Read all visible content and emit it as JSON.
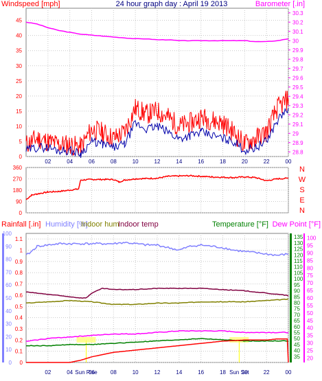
{
  "chart_data": [
    {
      "type": "line",
      "title": "24 hour graph day : April 19 2013",
      "left_axis_label": "Windspeed [mph]",
      "right_axis_label": "Barometer [.in]",
      "x_ticks": [
        "02",
        "04",
        "06",
        "08",
        "10",
        "12",
        "14",
        "16",
        "18",
        "20",
        "22",
        "00"
      ],
      "y_left_ticks": [
        "0",
        "5",
        "10",
        "15",
        "20",
        "25",
        "30",
        "35",
        "40",
        "45"
      ],
      "y_left_range": [
        0,
        49
      ],
      "y_right_ticks": [
        "28.8",
        "28.9",
        "29",
        "29.1",
        "29.2",
        "29.3",
        "29.4",
        "29.5",
        "29.6",
        "29.7",
        "29.8",
        "29.9",
        "30",
        "30.1",
        "30.2",
        "30.3"
      ],
      "y_right_range": [
        28.75,
        30.35
      ],
      "x_range_hours": [
        0,
        24
      ],
      "grid": true,
      "series": [
        {
          "color": "#ff00ff",
          "axis": "right",
          "x": [
            0,
            1,
            2,
            3,
            4,
            5,
            6,
            7,
            8,
            9,
            10,
            11,
            12,
            13,
            14,
            15,
            16,
            17,
            18,
            19,
            20,
            21,
            22,
            23,
            24
          ],
          "values": [
            30.2,
            30.18,
            30.14,
            30.11,
            30.09,
            30.07,
            30.06,
            30.05,
            30.04,
            30.03,
            30.02,
            30.02,
            30.01,
            30.01,
            30.0,
            30.0,
            30.0,
            30.0,
            30.0,
            30.0,
            30.0,
            29.99,
            29.99,
            30.0,
            30.02
          ]
        },
        {
          "color": "#ff0000",
          "axis": "left",
          "x": [
            0,
            1,
            2,
            3,
            4,
            5,
            6,
            7,
            8,
            9,
            10,
            11,
            12,
            13,
            14,
            15,
            16,
            17,
            18,
            19,
            20,
            21,
            22,
            23,
            24
          ],
          "values": [
            4,
            6,
            5,
            4,
            4,
            3,
            9,
            8,
            6,
            8,
            16,
            14,
            15,
            13,
            10,
            11,
            13,
            12,
            11,
            8,
            4,
            6,
            8,
            16,
            19
          ]
        },
        {
          "color": "#0000aa",
          "axis": "left",
          "x": [
            0,
            1,
            2,
            3,
            4,
            5,
            6,
            7,
            8,
            9,
            10,
            11,
            12,
            13,
            14,
            15,
            16,
            17,
            18,
            19,
            20,
            21,
            22,
            23,
            24
          ],
          "values": [
            2,
            3,
            3,
            2,
            2,
            1,
            5,
            4,
            3,
            4,
            11,
            9,
            10,
            8,
            6,
            7,
            8,
            7,
            6,
            5,
            2,
            3,
            5,
            12,
            16
          ]
        }
      ]
    },
    {
      "type": "line",
      "y_ticks": [
        "0",
        "90",
        "180",
        "270",
        "360"
      ],
      "y_range": [
        0,
        360
      ],
      "direction_labels": [
        "N",
        "W",
        "S",
        "E",
        "N"
      ],
      "x_range_hours": [
        0,
        24
      ],
      "series": [
        {
          "color": "#ff0000",
          "x": [
            0,
            0.5,
            1,
            2,
            3,
            4,
            4.8,
            5,
            6,
            8,
            8.5,
            9,
            10,
            12,
            13,
            15,
            17,
            19,
            20,
            21,
            22,
            23,
            24
          ],
          "values": [
            105,
            140,
            150,
            165,
            170,
            180,
            190,
            260,
            265,
            265,
            245,
            260,
            270,
            275,
            290,
            295,
            285,
            280,
            285,
            280,
            255,
            270,
            275
          ]
        }
      ]
    },
    {
      "type": "line",
      "labels": {
        "rainfall": "Rainfall [.in]",
        "humidity": "Humidity [%]",
        "indoor_hum": "Indoor hum",
        "indoor_temp": "Indoor temp",
        "temperature": "Temperature [°F]",
        "dew_point": "Dew Point [°F]"
      },
      "annotations": [
        "Sun Rise",
        "Sun Set"
      ],
      "x_range_hours": [
        0,
        24
      ],
      "rain_ticks": [
        "0",
        "0.1",
        "0.2",
        "0.3",
        "0.4",
        "0.5",
        "0.6",
        "0.7",
        "0.8",
        "0.9",
        "1",
        "1.1"
      ],
      "rain_range": [
        0,
        1.15
      ],
      "humidity_ticks": [
        "0",
        "10",
        "20",
        "30",
        "40",
        "50",
        "60",
        "70",
        "80",
        "90",
        "100"
      ],
      "humidity_range": [
        0,
        100
      ],
      "temp_ticks": [
        "35",
        "40",
        "45",
        "50",
        "55",
        "60",
        "65",
        "70",
        "75",
        "80",
        "85",
        "90",
        "95",
        "100",
        "105",
        "110",
        "115",
        "120",
        "125",
        "130",
        "135"
      ],
      "temp_range": [
        30,
        138
      ],
      "dew_ticks": [
        "20",
        "25",
        "30",
        "35",
        "40",
        "45",
        "50",
        "55",
        "60",
        "65",
        "70",
        "75",
        "80",
        "85",
        "90",
        "95",
        "100"
      ],
      "dew_range": [
        17,
        103
      ],
      "series": [
        {
          "name": "Humidity [%]",
          "color": "#8080ff",
          "axis": "humidity",
          "x": [
            0,
            0.5,
            1,
            2,
            3,
            4,
            5,
            6,
            7,
            8,
            9,
            10,
            11,
            12,
            13,
            14,
            15,
            16,
            17,
            18,
            19,
            20,
            21,
            22,
            23,
            24
          ],
          "values": [
            83,
            86,
            90,
            91,
            92,
            92,
            92,
            92,
            92,
            92,
            93,
            92,
            91,
            91,
            89,
            87,
            90,
            91,
            90,
            89,
            87,
            86,
            85,
            84,
            83,
            84
          ]
        },
        {
          "name": "Indoor temp",
          "color": "#800040",
          "axis": "temp",
          "x": [
            0,
            1,
            2,
            3,
            4,
            5,
            5.5,
            6,
            7,
            8,
            10,
            12,
            14,
            16,
            18,
            20,
            22,
            24
          ],
          "values": [
            89,
            88,
            87,
            86,
            85,
            84,
            84,
            88,
            92,
            91,
            91,
            92,
            92,
            92,
            91,
            90,
            88,
            86
          ]
        },
        {
          "name": "Indoor hum",
          "color": "#808000",
          "axis": "humidity",
          "x": [
            0,
            2,
            4,
            6,
            8,
            10,
            12,
            14,
            16,
            18,
            20,
            22,
            24
          ],
          "values": [
            46,
            47,
            48,
            47,
            45,
            45,
            46,
            46,
            47,
            47,
            47,
            48,
            49
          ]
        },
        {
          "name": "Temperature [°F]",
          "color": "#008000",
          "axis": "temp",
          "x": [
            0,
            2,
            4,
            6,
            8,
            10,
            12,
            14,
            16,
            18,
            20,
            22,
            24
          ],
          "values": [
            44,
            44,
            45,
            45,
            46,
            47,
            48,
            49,
            50,
            49,
            48,
            48,
            48
          ]
        },
        {
          "name": "Dew Point [°F]",
          "color": "#ff00ff",
          "axis": "dew",
          "x": [
            0,
            2,
            4,
            6,
            8,
            10,
            12,
            14,
            16,
            18,
            20,
            22,
            24
          ],
          "values": [
            31,
            33,
            34,
            35,
            36,
            36,
            37,
            38,
            38,
            38,
            37,
            37,
            37
          ]
        },
        {
          "name": "Rainfall [.in]",
          "color": "#ff0000",
          "axis": "rain",
          "x": [
            0,
            4,
            5,
            6,
            8,
            10,
            12,
            14,
            16,
            17,
            18,
            20,
            22,
            23,
            23.9,
            24
          ],
          "values": [
            0,
            0,
            0.02,
            0.05,
            0.09,
            0.11,
            0.13,
            0.15,
            0.17,
            0.18,
            0.19,
            0.2,
            0.2,
            0.21,
            0.21,
            0
          ]
        }
      ]
    }
  ]
}
